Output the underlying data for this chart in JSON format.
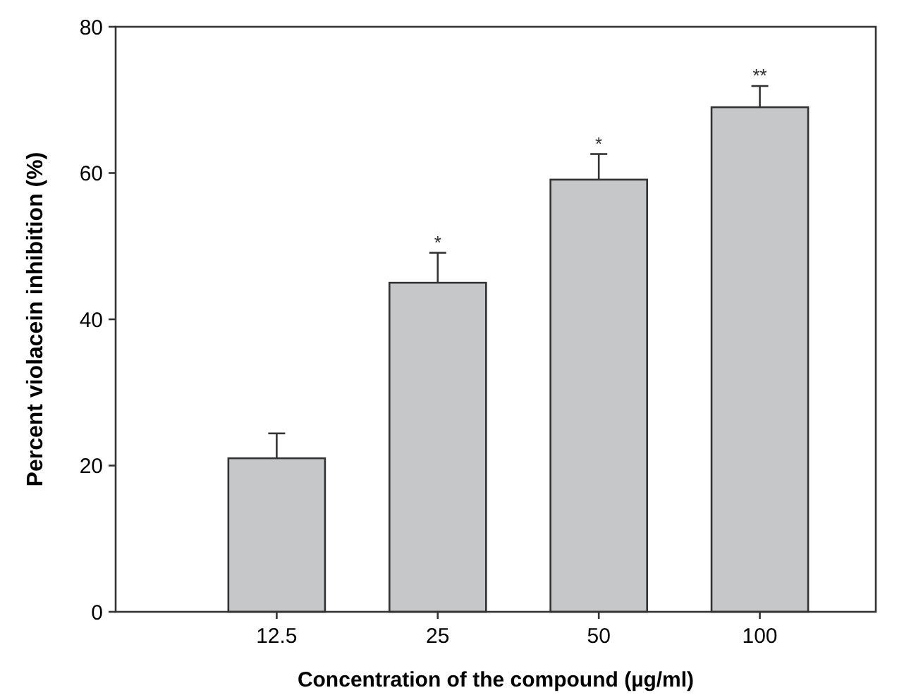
{
  "chart_data": {
    "type": "bar",
    "xlabel": "Concentration of the compound (µg/ml)",
    "ylabel": "Percent violacein inhibition (%)",
    "categories": [
      "12.5",
      "25",
      "50",
      "100"
    ],
    "values": [
      21.0,
      45.0,
      59.1,
      69.0
    ],
    "errors": [
      [
        21.0,
        24.4
      ],
      [
        45.0,
        49.1
      ],
      [
        59.1,
        62.6
      ],
      [
        69.0,
        71.9
      ]
    ],
    "color": "#c6c7c9",
    "ylim": [
      0,
      80
    ],
    "yticks": [
      0,
      20,
      40,
      60,
      80
    ],
    "grid": false,
    "annotations": [
      {
        "text": "*",
        "x": "25",
        "y": 49.1
      },
      {
        "text": "*",
        "x": "50",
        "y": 62.6
      },
      {
        "text": "**",
        "x": "100",
        "y": 71.9
      }
    ]
  }
}
